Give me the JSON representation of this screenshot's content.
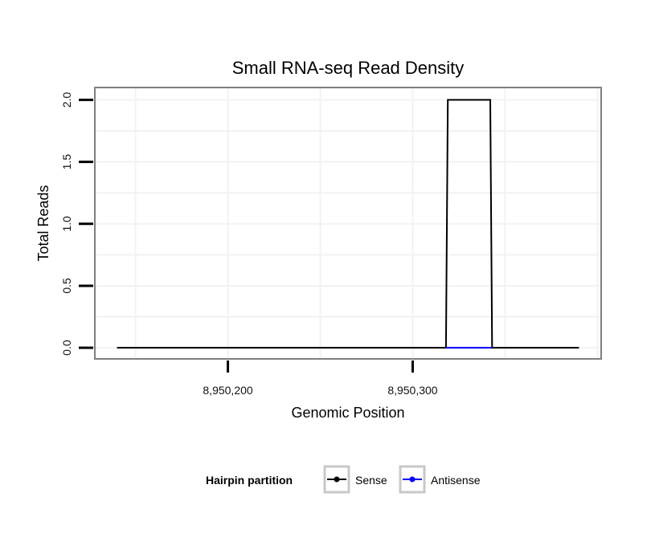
{
  "chart_data": {
    "type": "line",
    "title": "Small RNA-seq Read Density",
    "xlabel": "Genomic Position",
    "ylabel": "Total Reads",
    "xlim": [
      8950128,
      8950402
    ],
    "ylim": [
      -0.09,
      2.1
    ],
    "x_ticks": [
      8950200,
      8950300
    ],
    "x_tick_labels": [
      "8,950,200",
      "8,950,300"
    ],
    "y_ticks": [
      0.0,
      0.5,
      1.0,
      1.5,
      2.0
    ],
    "y_tick_labels": [
      "0.0",
      "0.5",
      "1.0",
      "1.5",
      "2.0"
    ],
    "grid": true,
    "legend": {
      "title": "Hairpin partition",
      "position": "bottom"
    },
    "series": [
      {
        "name": "Sense",
        "color": "#000000",
        "x": [
          8950140,
          8950318,
          8950319,
          8950342,
          8950343,
          8950390
        ],
        "y": [
          0,
          0,
          2,
          2,
          0,
          0
        ]
      },
      {
        "name": "Antisense",
        "color": "#0000ff",
        "x": [
          8950318,
          8950343
        ],
        "y": [
          0,
          0
        ]
      }
    ]
  }
}
